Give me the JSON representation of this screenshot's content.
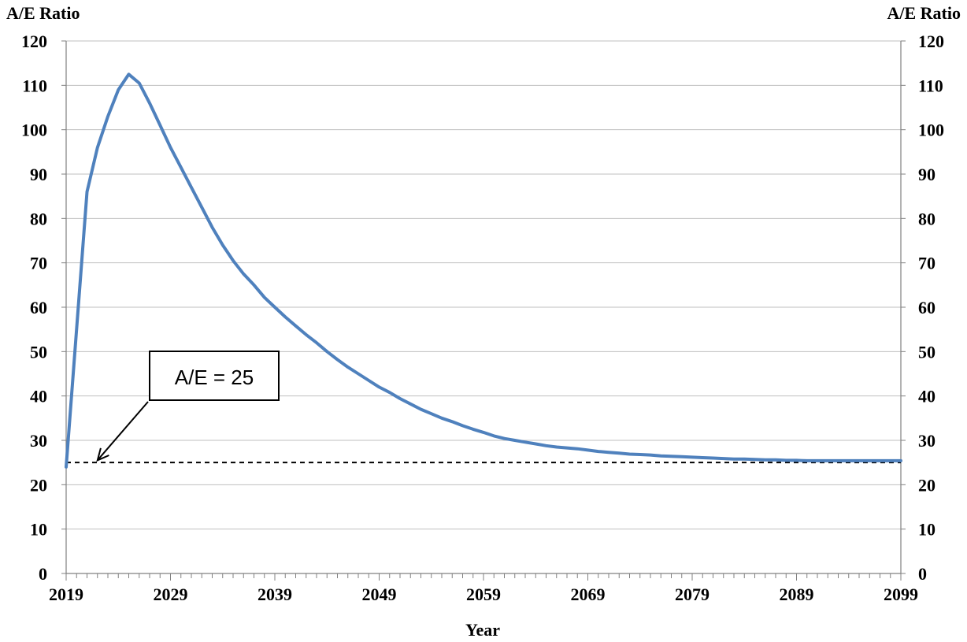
{
  "chart_data": {
    "type": "line",
    "title": "",
    "xlabel": "Year",
    "ylabel_left": "A/E Ratio",
    "ylabel_right": "A/E Ratio",
    "xlim": [
      2019,
      2099
    ],
    "ylim": [
      0,
      120
    ],
    "x_ticks": [
      2019,
      2029,
      2039,
      2049,
      2059,
      2069,
      2079,
      2089,
      2099
    ],
    "y_ticks": [
      0,
      10,
      20,
      30,
      40,
      50,
      60,
      70,
      80,
      90,
      100,
      110,
      120
    ],
    "grid": true,
    "legend": "none",
    "colors": {
      "series": "#4F81BD",
      "grid": "#bfbfbf",
      "reference": "#000000"
    },
    "series": [
      {
        "x": [
          2019,
          2021,
          2022,
          2023,
          2024,
          2025,
          2026,
          2027,
          2028,
          2029,
          2030,
          2031,
          2032,
          2033,
          2034,
          2035,
          2036,
          2037,
          2038,
          2039,
          2040,
          2041,
          2042,
          2043,
          2044,
          2045,
          2046,
          2047,
          2048,
          2049,
          2050,
          2051,
          2052,
          2053,
          2054,
          2055,
          2056,
          2057,
          2058,
          2059,
          2060,
          2061,
          2062,
          2063,
          2064,
          2065,
          2066,
          2067,
          2068,
          2069,
          2070,
          2071,
          2072,
          2073,
          2074,
          2075,
          2076,
          2077,
          2078,
          2079,
          2080,
          2081,
          2082,
          2083,
          2084,
          2085,
          2086,
          2087,
          2088,
          2089,
          2090,
          2095,
          2099
        ],
        "values": [
          24,
          86,
          96,
          103,
          109,
          112.5,
          110.5,
          106,
          101,
          96,
          91.5,
          87,
          82.5,
          78,
          74,
          70.5,
          67.5,
          65,
          62.2,
          60,
          57.8,
          55.8,
          53.8,
          52,
          50,
          48.2,
          46.5,
          45,
          43.5,
          42,
          40.8,
          39.4,
          38.2,
          37,
          36,
          35,
          34.2,
          33.3,
          32.5,
          31.8,
          31,
          30.4,
          30,
          29.6,
          29.2,
          28.8,
          28.5,
          28.3,
          28.1,
          27.8,
          27.5,
          27.3,
          27.1,
          26.9,
          26.8,
          26.7,
          26.5,
          26.4,
          26.3,
          26.2,
          26.1,
          26,
          25.9,
          25.8,
          25.8,
          25.7,
          25.6,
          25.6,
          25.5,
          25.5,
          25.4,
          25.4,
          25.4
        ]
      }
    ],
    "reference_line": {
      "y": 25
    },
    "annotation": {
      "text": "A/E = 25",
      "arrow_to": {
        "x": 2022,
        "y": 25.5
      }
    }
  }
}
